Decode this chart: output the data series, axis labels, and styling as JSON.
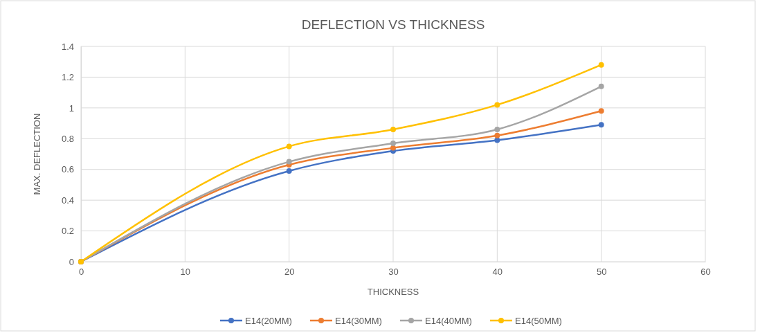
{
  "chart_data": {
    "type": "line",
    "title": "DEFLECTION VS THICKNESS",
    "xlabel": "THICKNESS",
    "ylabel": "MAX. DEFLECTION",
    "x": [
      0,
      20,
      30,
      40,
      50
    ],
    "series": [
      {
        "name": "E14(20MM)",
        "color": "#4472c4",
        "values": [
          0,
          0.59,
          0.72,
          0.79,
          0.89
        ]
      },
      {
        "name": "E14(30MM)",
        "color": "#ed7d31",
        "values": [
          0,
          0.63,
          0.74,
          0.82,
          0.98
        ]
      },
      {
        "name": "E14(40MM)",
        "color": "#a5a5a5",
        "values": [
          0,
          0.65,
          0.77,
          0.86,
          1.14
        ]
      },
      {
        "name": "E14(50MM)",
        "color": "#ffc000",
        "values": [
          0,
          0.75,
          0.86,
          1.02,
          1.28
        ]
      }
    ],
    "xlim": [
      0,
      60
    ],
    "xticks": [
      0,
      10,
      20,
      30,
      40,
      50,
      60
    ],
    "ylim": [
      0,
      1.4
    ],
    "yticks": [
      0,
      0.2,
      0.4,
      0.6,
      0.8,
      1,
      1.2,
      1.4
    ],
    "grid": true,
    "legend": "bottom",
    "marker": "circle",
    "line_style": "solid"
  }
}
